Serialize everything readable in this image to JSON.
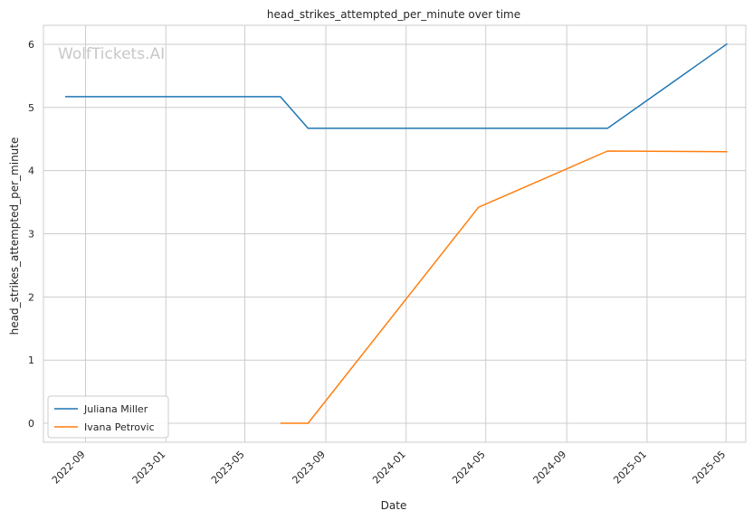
{
  "chart_data": {
    "type": "line",
    "title": "head_strikes_attempted_per_minute over time",
    "xlabel": "Date",
    "ylabel": "head_strikes_attempted_per_minute",
    "watermark": "WolfTickets.AI",
    "x_ticks": [
      "2022-09",
      "2023-01",
      "2023-05",
      "2023-09",
      "2024-01",
      "2024-05",
      "2024-09",
      "2025-01",
      "2025-05"
    ],
    "y_ticks": [
      0,
      1,
      2,
      3,
      4,
      5,
      6
    ],
    "ylim": [
      -0.3,
      6.3
    ],
    "xlim": [
      "2022-06-29",
      "2025-05-31"
    ],
    "grid": true,
    "legend_position": "lower-left",
    "series": [
      {
        "name": "Juliana Miller",
        "color": "#1f77b4",
        "points": [
          {
            "x": "2022-08-01",
            "y": 5.17
          },
          {
            "x": "2023-06-24",
            "y": 5.17
          },
          {
            "x": "2023-08-05",
            "y": 4.67
          },
          {
            "x": "2024-11-02",
            "y": 4.67
          },
          {
            "x": "2025-05-03",
            "y": 6.01
          }
        ]
      },
      {
        "name": "Ivana Petrovic",
        "color": "#ff7f0e",
        "points": [
          {
            "x": "2023-06-24",
            "y": 0.0
          },
          {
            "x": "2023-08-05",
            "y": 0.0
          },
          {
            "x": "2024-04-20",
            "y": 3.42
          },
          {
            "x": "2024-11-02",
            "y": 4.31
          },
          {
            "x": "2025-05-03",
            "y": 4.3
          }
        ]
      }
    ]
  }
}
